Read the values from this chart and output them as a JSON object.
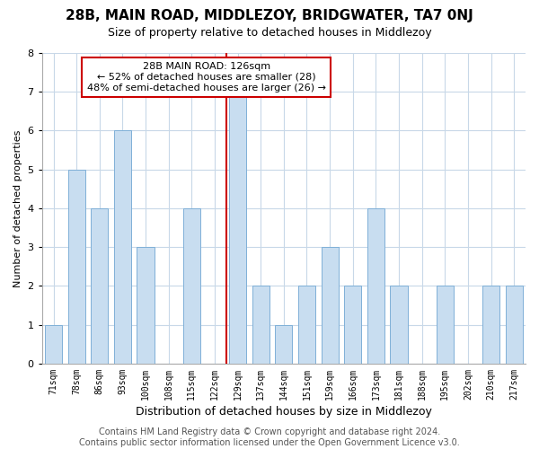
{
  "title": "28B, MAIN ROAD, MIDDLEZOY, BRIDGWATER, TA7 0NJ",
  "subtitle": "Size of property relative to detached houses in Middlezoy",
  "xlabel": "Distribution of detached houses by size in Middlezoy",
  "ylabel": "Number of detached properties",
  "categories": [
    "71sqm",
    "78sqm",
    "86sqm",
    "93sqm",
    "100sqm",
    "108sqm",
    "115sqm",
    "122sqm",
    "129sqm",
    "137sqm",
    "144sqm",
    "151sqm",
    "159sqm",
    "166sqm",
    "173sqm",
    "181sqm",
    "188sqm",
    "195sqm",
    "202sqm",
    "210sqm",
    "217sqm"
  ],
  "values": [
    1,
    5,
    4,
    6,
    3,
    0,
    4,
    0,
    7,
    2,
    1,
    2,
    3,
    2,
    4,
    2,
    0,
    2,
    0,
    2,
    2
  ],
  "bar_color": "#c8ddf0",
  "bar_edge_color": "#7fb0d8",
  "reference_line_color": "#cc0000",
  "annotation_box_text": "28B MAIN ROAD: 126sqm\n← 52% of detached houses are smaller (28)\n48% of semi-detached houses are larger (26) →",
  "ylim": [
    0,
    8
  ],
  "yticks": [
    0,
    1,
    2,
    3,
    4,
    5,
    6,
    7,
    8
  ],
  "background_color": "#ffffff",
  "grid_color": "#c8d8e8",
  "footer_line1": "Contains HM Land Registry data © Crown copyright and database right 2024.",
  "footer_line2": "Contains public sector information licensed under the Open Government Licence v3.0.",
  "title_fontsize": 11,
  "subtitle_fontsize": 9,
  "xlabel_fontsize": 9,
  "ylabel_fontsize": 8,
  "annotation_fontsize": 8,
  "footer_fontsize": 7
}
